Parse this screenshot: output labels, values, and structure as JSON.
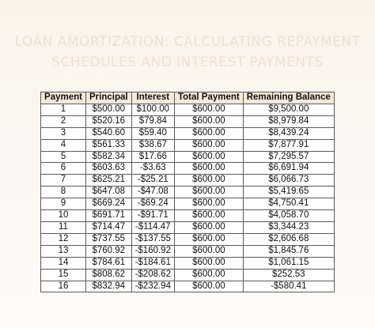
{
  "title": {
    "line1": "LOAN AMORTIZATION: CALCULATING REPAYMENT",
    "line2": "SCHEDULES AND INTEREST PAYMENTS"
  },
  "colors": {
    "header_bg": "#fce8d8",
    "title_color": "#f0e2d3",
    "page_bg": "#fbf3ea"
  },
  "table": {
    "headers": [
      "Payment",
      "Principal",
      "Interest",
      "Total Payment",
      "Remaining Balance"
    ],
    "rows": [
      [
        "1",
        "$500.00",
        "$100.00",
        "$600.00",
        "$9,500.00"
      ],
      [
        "2",
        "$520.16",
        "$79.84",
        "$600.00",
        "$8,979.84"
      ],
      [
        "3",
        "$540.60",
        "$59.40",
        "$600.00",
        "$8,439.24"
      ],
      [
        "4",
        "$561.33",
        "$38.67",
        "$600.00",
        "$7,877.91"
      ],
      [
        "5",
        "$582.34",
        "$17.66",
        "$600.00",
        "$7,295.57"
      ],
      [
        "6",
        "$603.63",
        "-$3.63",
        "$600.00",
        "$6,691.94"
      ],
      [
        "7",
        "$625.21",
        "-$25.21",
        "$600.00",
        "$6,066.73"
      ],
      [
        "8",
        "$647.08",
        "-$47.08",
        "$600.00",
        "$5,419.65"
      ],
      [
        "9",
        "$669.24",
        "-$69.24",
        "$600.00",
        "$4,750.41"
      ],
      [
        "10",
        "$691.71",
        "-$91.71",
        "$600.00",
        "$4,058.70"
      ],
      [
        "11",
        "$714.47",
        "-$114.47",
        "$600.00",
        "$3,344.23"
      ],
      [
        "12",
        "$737.55",
        "-$137.55",
        "$600.00",
        "$2,606.68"
      ],
      [
        "13",
        "$760.92",
        "-$160.92",
        "$600.00",
        "$1,845.76"
      ],
      [
        "14",
        "$784.61",
        "-$184.61",
        "$600.00",
        "$1,061.15"
      ],
      [
        "15",
        "$808.62",
        "-$208.62",
        "$600.00",
        "$252.53"
      ],
      [
        "16",
        "$832.94",
        "-$232.94",
        "$600.00",
        "-$580.41"
      ]
    ]
  }
}
